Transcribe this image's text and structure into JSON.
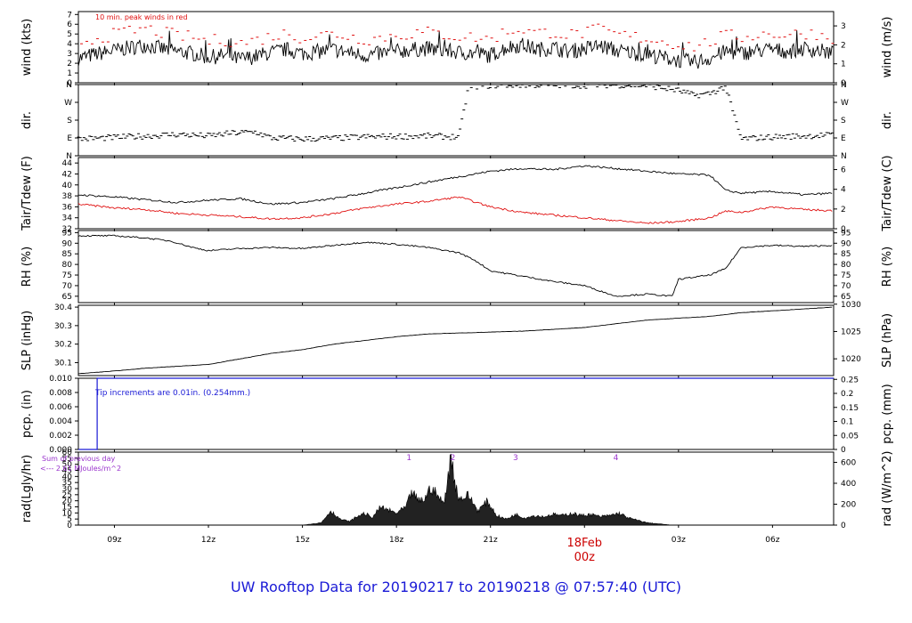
{
  "title": "UW Rooftop Data for 20190217  to  20190218 @ 07:57:40  (UTC)",
  "colors": {
    "title": "#1a1ad6",
    "peak": "#e01010",
    "dewpoint": "#e01010",
    "precip": "#1a1ad6",
    "rad_note": "#9933cc",
    "date_label": "#cc0000"
  },
  "x_axis": {
    "hours": [
      0,
      3,
      6,
      9,
      12,
      15,
      18,
      21,
      24
    ],
    "labels": [
      "09z",
      "12z",
      "15z",
      "18z",
      "21z",
      "00z",
      "03z",
      "06z"
    ],
    "label_hours": [
      9,
      12,
      15,
      18,
      21,
      24,
      27,
      30
    ],
    "range_hours": [
      7.85,
      31.95
    ],
    "date_label": "18Feb",
    "date_sublabel": "00z"
  },
  "chart_data": [
    {
      "type": "line",
      "id": "wind",
      "ylabel": "wind (kts)",
      "ylabel_right": "wind (m/s)",
      "ylim": [
        0,
        7.3
      ],
      "yticks": [
        0,
        1,
        2,
        3,
        4,
        5,
        6,
        7
      ],
      "yticks_right": [
        0,
        1,
        2,
        3
      ],
      "annotation": "10 min. peak winds in red",
      "series": [
        {
          "x": [
            7.85,
            8.5,
            9.0,
            9.5,
            10.0,
            10.5,
            11.0,
            11.5,
            12.0,
            12.5,
            13.0,
            13.5,
            14.0,
            14.5,
            15.0,
            15.5,
            16.0,
            16.5,
            17.0,
            17.5,
            18.0,
            18.5,
            19.0,
            19.5,
            20.0,
            20.5,
            21.0,
            21.5,
            22.0,
            22.5,
            23.0,
            23.5,
            24.0,
            24.5,
            25.0,
            25.5,
            26.0,
            26.5,
            27.0,
            27.5,
            28.0,
            28.5,
            29.0,
            29.5,
            30.0,
            30.5,
            31.0,
            31.5,
            31.95
          ],
          "y": [
            2.5,
            3.0,
            3.3,
            3.6,
            3.9,
            3.5,
            3.2,
            3.0,
            2.6,
            2.8,
            2.4,
            2.7,
            3.1,
            3.4,
            3.0,
            3.2,
            3.4,
            3.1,
            2.8,
            3.0,
            3.2,
            3.4,
            3.5,
            3.3,
            3.1,
            3.0,
            2.8,
            3.6,
            3.9,
            3.4,
            3.6,
            3.2,
            3.5,
            3.8,
            3.3,
            3.1,
            2.9,
            2.6,
            2.3,
            2.1,
            2.5,
            3.2,
            3.0,
            3.3,
            3.4,
            3.2,
            3.5,
            3.3,
            3.0
          ]
        }
      ]
    },
    {
      "type": "scatter",
      "id": "dir",
      "ylabel": "dir.",
      "ylabel_right": "dir.",
      "yticks": [
        "N",
        "E",
        "S",
        "W",
        "N"
      ],
      "series": [
        {
          "x": [
            7.85,
            9.0,
            10.0,
            11.0,
            12.0,
            12.8,
            13.5,
            14.0,
            15.0,
            16.0,
            17.0,
            18.0,
            19.0,
            20.0,
            20.3,
            21.0,
            22.0,
            23.0,
            24.0,
            25.0,
            26.0,
            27.0,
            27.5,
            28.0,
            28.5,
            29.0,
            30.0,
            31.0,
            31.95
          ],
          "y": [
            85,
            92,
            100,
            108,
            100,
            115,
            120,
            90,
            85,
            88,
            95,
            98,
            100,
            95,
            350,
            355,
            358,
            357,
            356,
            358,
            355,
            330,
            305,
            315,
            350,
            85,
            95,
            100,
            105
          ]
        }
      ]
    },
    {
      "type": "line",
      "id": "temp",
      "ylabel": "Tair/Tdew (F)",
      "ylabel_right": "Tair/Tdew (C)",
      "ylim": [
        32,
        45
      ],
      "yticks": [
        32,
        34,
        36,
        38,
        40,
        42,
        44
      ],
      "yticks_right": [
        0,
        2,
        4,
        6
      ],
      "series": [
        {
          "x": [
            7.85,
            9.0,
            10.0,
            11.0,
            12.0,
            13.0,
            14.0,
            15.0,
            16.0,
            17.0,
            18.0,
            19.0,
            20.0,
            21.0,
            22.0,
            23.0,
            24.0,
            25.0,
            26.0,
            27.0,
            28.0,
            28.5,
            29.0,
            30.0,
            31.0,
            31.95
          ],
          "y": [
            38.2,
            37.8,
            37.3,
            36.8,
            37.2,
            37.5,
            36.5,
            36.8,
            37.5,
            38.5,
            39.5,
            40.5,
            41.5,
            42.5,
            43.0,
            42.8,
            43.5,
            43.0,
            42.5,
            42.0,
            41.8,
            39.0,
            38.5,
            38.8,
            38.2,
            38.5
          ]
        },
        {
          "x": [
            7.85,
            9.0,
            10.0,
            11.0,
            12.0,
            13.0,
            14.0,
            15.0,
            16.0,
            17.0,
            18.0,
            19.0,
            20.0,
            21.0,
            22.0,
            23.0,
            24.0,
            25.0,
            26.0,
            27.0,
            28.0,
            28.5,
            29.0,
            30.0,
            31.0,
            31.95
          ],
          "y": [
            36.5,
            35.8,
            35.5,
            34.8,
            34.5,
            34.2,
            33.8,
            34.0,
            34.8,
            35.8,
            36.5,
            37.0,
            37.8,
            36.0,
            35.0,
            34.5,
            34.0,
            33.5,
            33.0,
            33.3,
            34.0,
            35.2,
            35.0,
            36.0,
            35.5,
            35.3
          ]
        }
      ]
    },
    {
      "type": "line",
      "id": "rh",
      "ylabel": "RH (%)",
      "ylabel_right": "RH (%)",
      "ylim": [
        62,
        96
      ],
      "yticks": [
        65,
        70,
        75,
        80,
        85,
        90,
        95
      ],
      "yticks_right": [
        65,
        70,
        75,
        80,
        85,
        90,
        95
      ],
      "series": [
        {
          "x": [
            7.85,
            9.0,
            10.0,
            10.8,
            11.5,
            12.0,
            13.0,
            14.0,
            15.0,
            16.0,
            17.0,
            18.0,
            19.0,
            20.0,
            20.5,
            21.0,
            22.0,
            23.0,
            24.0,
            25.0,
            26.0,
            26.8,
            27.0,
            28.0,
            28.5,
            29.0,
            30.0,
            31.0,
            31.95
          ],
          "y": [
            93.5,
            93.5,
            92.5,
            91.0,
            88.0,
            86.5,
            87.5,
            88.0,
            87.5,
            89.0,
            90.5,
            89.5,
            88.0,
            85.5,
            82.0,
            77.0,
            74.5,
            72.0,
            70.0,
            65.0,
            66.0,
            65.0,
            73.0,
            75.0,
            78.0,
            88.0,
            89.0,
            88.5,
            89.0
          ]
        }
      ]
    },
    {
      "type": "line",
      "id": "slp",
      "ylabel": "SLP (inHg)",
      "ylabel_right": "SLP (hPa)",
      "ylim": [
        30.03,
        30.41
      ],
      "yticks": [
        30.1,
        30.2,
        30.3,
        30.4
      ],
      "yticks_right": [
        1020,
        1025,
        1030
      ],
      "series": [
        {
          "x": [
            7.85,
            9.0,
            10.0,
            11.0,
            12.0,
            13.0,
            14.0,
            15.0,
            16.0,
            17.0,
            18.0,
            19.0,
            20.0,
            21.0,
            22.0,
            23.0,
            24.0,
            25.0,
            26.0,
            27.0,
            28.0,
            29.0,
            30.0,
            31.0,
            31.95
          ],
          "y": [
            30.04,
            30.055,
            30.07,
            30.08,
            30.09,
            30.12,
            30.15,
            30.17,
            30.2,
            30.22,
            30.24,
            30.255,
            30.26,
            30.265,
            30.27,
            30.28,
            30.29,
            30.31,
            30.33,
            30.34,
            30.35,
            30.37,
            30.38,
            30.39,
            30.4
          ]
        }
      ]
    },
    {
      "type": "line",
      "id": "pcp",
      "ylabel": "pcp. (in)",
      "ylabel_right": "pcp. (mm)",
      "ylim": [
        0,
        0.01
      ],
      "yticks": [
        0.0,
        0.002,
        0.004,
        0.006,
        0.008,
        0.01
      ],
      "ytick_labels": [
        "0.000",
        "0.002",
        "0.004",
        "0.006",
        "0.008",
        "0.010"
      ],
      "yticks_right": [
        0,
        0.05,
        0.1,
        0.15,
        0.2,
        0.25
      ],
      "annotation": "Tip increments are 0.01in. (0.254mm.)",
      "series": [
        {
          "x": [
            7.85,
            8.45,
            8.45,
            31.95
          ],
          "y": [
            0.0,
            0.0,
            0.01,
            0.01
          ]
        }
      ]
    },
    {
      "type": "area",
      "id": "rad",
      "ylabel": "rad(Lgly/hr)",
      "ylabel_right": "rad (W/m^2)",
      "ylim": [
        0,
        60
      ],
      "yticks": [
        0,
        5,
        10,
        15,
        20,
        25,
        30,
        35,
        40,
        45,
        50,
        55,
        60
      ],
      "yticks_right": [
        0,
        200,
        400,
        600
      ],
      "annotation_line1": "Sum of previous day",
      "annotation_line2": "<--- 2.61 MJoules/m^2",
      "markers": [
        {
          "label": "1",
          "x": 18.4
        },
        {
          "label": "2",
          "x": 19.8
        },
        {
          "label": "3",
          "x": 21.8
        },
        {
          "label": "4",
          "x": 25.0
        }
      ],
      "series": [
        {
          "x": [
            15.0,
            15.6,
            15.9,
            16.2,
            16.5,
            16.8,
            17.0,
            17.2,
            17.5,
            17.8,
            18.0,
            18.3,
            18.5,
            18.7,
            18.9,
            19.1,
            19.3,
            19.5,
            19.65,
            19.75,
            19.85,
            20.0,
            20.3,
            20.6,
            20.9,
            21.2,
            21.5,
            21.8,
            22.1,
            22.4,
            22.7,
            23.0,
            23.3,
            23.6,
            23.9,
            24.2,
            24.5,
            24.8,
            25.1,
            25.4,
            25.7,
            26.0,
            26.4,
            26.8
          ],
          "y": [
            0,
            2,
            12,
            5,
            3,
            8,
            10,
            6,
            15,
            12,
            10,
            15,
            28,
            20,
            22,
            32,
            25,
            18,
            40,
            60,
            38,
            22,
            25,
            12,
            20,
            8,
            5,
            9,
            6,
            8,
            7,
            9,
            8,
            10,
            8,
            9,
            7,
            8,
            10,
            6,
            4,
            2,
            1,
            0
          ]
        }
      ]
    }
  ]
}
